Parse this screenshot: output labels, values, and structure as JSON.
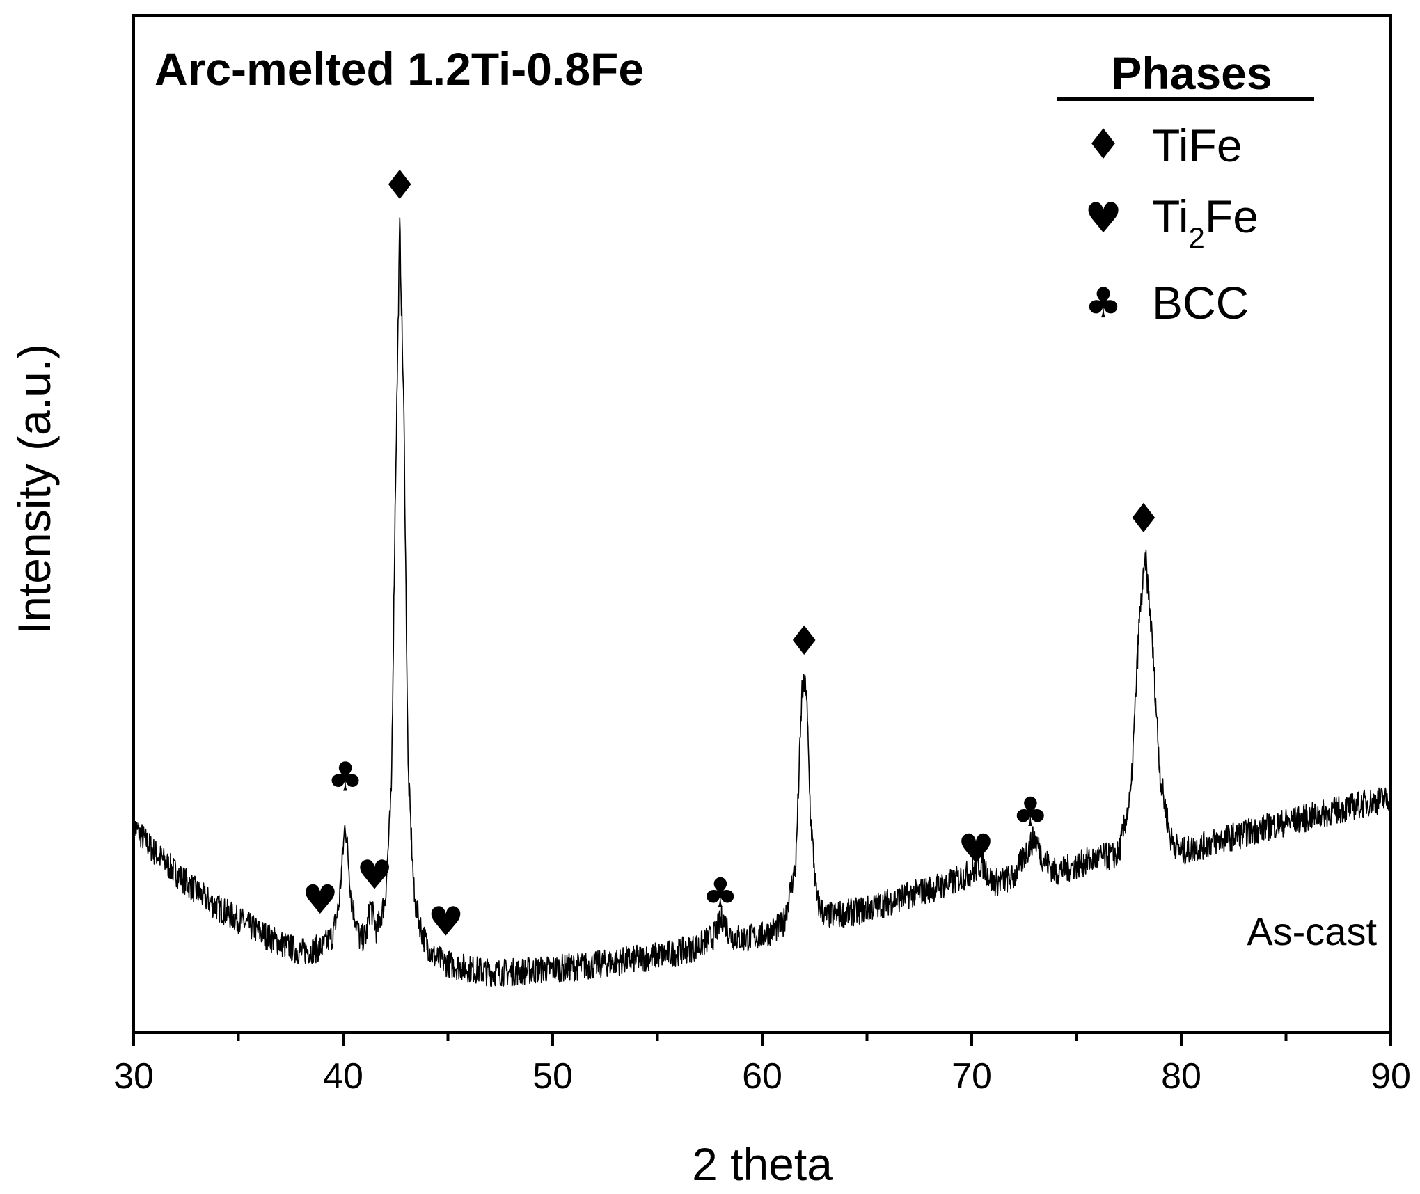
{
  "chart_data": {
    "type": "line",
    "title": "Arc-melted 1.2Ti-0.8Fe",
    "xlabel": "2 theta",
    "ylabel": "Intensity (a.u.)",
    "xlim": [
      30,
      90
    ],
    "ylim": [
      0,
      100
    ],
    "y_ticks_shown": false,
    "grid": false,
    "x_ticks": [
      "30",
      "40",
      "50",
      "60",
      "70",
      "80",
      "90"
    ],
    "annotation": "As-cast",
    "legend": {
      "title": "Phases",
      "placement": "top-right",
      "entries": [
        {
          "marker": "diamond",
          "symbol": "♦",
          "label": "TiFe",
          "label_base": "TiFe",
          "label_sub": ""
        },
        {
          "marker": "heart",
          "symbol": "♥",
          "label": "Ti2Fe",
          "label_base": "Ti",
          "label_sub": "2",
          "label_rest": "Fe"
        },
        {
          "marker": "club",
          "symbol": "♣",
          "label": "BCC",
          "label_base": "BCC",
          "label_sub": ""
        }
      ]
    },
    "series": [
      {
        "color": "#000000",
        "x": [
          30,
          31,
          32,
          33,
          34,
          35,
          36,
          37,
          38,
          38.6,
          39,
          39.5,
          39.8,
          40.1,
          40.4,
          40.8,
          41.1,
          41.3,
          41.6,
          42.0,
          42.3,
          42.5,
          42.7,
          42.9,
          43.1,
          43.4,
          43.8,
          44.3,
          45,
          46,
          47,
          48,
          49,
          50,
          51,
          52,
          53,
          54,
          55,
          56,
          57,
          57.7,
          58.1,
          58.5,
          59,
          60,
          61,
          61.6,
          61.9,
          62.1,
          62.3,
          62.6,
          63,
          64,
          65,
          66,
          67,
          68,
          69,
          70,
          70.5,
          71,
          72,
          72.6,
          73.0,
          73.4,
          74,
          75,
          76,
          77,
          77.6,
          78.0,
          78.3,
          78.6,
          79.0,
          79.5,
          80,
          81,
          82,
          83,
          84,
          85,
          86,
          87,
          88,
          89,
          90
        ],
        "y": [
          18.5,
          15.5,
          13.2,
          11.0,
          9.2,
          7.8,
          6.4,
          5.1,
          4.1,
          4.4,
          4.6,
          6.0,
          9.5,
          19.0,
          10.0,
          5.5,
          6.0,
          9.5,
          6.5,
          10.0,
          22.0,
          58.0,
          87.0,
          65.0,
          25.0,
          10.0,
          6.0,
          3.6,
          2.8,
          2.2,
          1.8,
          1.8,
          2.0,
          2.2,
          2.4,
          2.6,
          3.0,
          3.3,
          3.7,
          4.1,
          4.8,
          6.0,
          8.0,
          6.0,
          5.6,
          6.0,
          7.2,
          14.0,
          34.0,
          34.5,
          20.0,
          10.0,
          8.2,
          8.5,
          9.0,
          9.8,
          10.6,
          11.3,
          12.0,
          13.2,
          14.2,
          12.0,
          12.6,
          15.5,
          17.2,
          14.8,
          13.2,
          14.0,
          14.8,
          15.2,
          22.0,
          42.0,
          49.0,
          40.0,
          24.0,
          17.0,
          15.5,
          16.2,
          17.0,
          17.6,
          18.3,
          18.9,
          19.4,
          20.0,
          20.6,
          21.2,
          21.6
        ]
      }
    ],
    "peak_markers": [
      {
        "phase": "Ti2Fe",
        "symbol": "♥",
        "x": 38.9,
        "y": 8.5
      },
      {
        "phase": "BCC",
        "symbol": "♣",
        "x": 40.1,
        "y": 22.5
      },
      {
        "phase": "Ti2Fe",
        "symbol": "♥",
        "x": 41.5,
        "y": 11.3
      },
      {
        "phase": "TiFe",
        "symbol": "♦",
        "x": 42.7,
        "y": 90.0
      },
      {
        "phase": "Ti2Fe",
        "symbol": "♥",
        "x": 44.9,
        "y": 6.0
      },
      {
        "phase": "BCC",
        "symbol": "♣",
        "x": 58.0,
        "y": 9.3
      },
      {
        "phase": "TiFe",
        "symbol": "♦",
        "x": 62.0,
        "y": 38.0
      },
      {
        "phase": "Ti2Fe",
        "symbol": "♥",
        "x": 70.2,
        "y": 14.3
      },
      {
        "phase": "BCC",
        "symbol": "♣",
        "x": 72.8,
        "y": 18.5
      },
      {
        "phase": "TiFe",
        "symbol": "♦",
        "x": 78.2,
        "y": 52.0
      }
    ]
  }
}
